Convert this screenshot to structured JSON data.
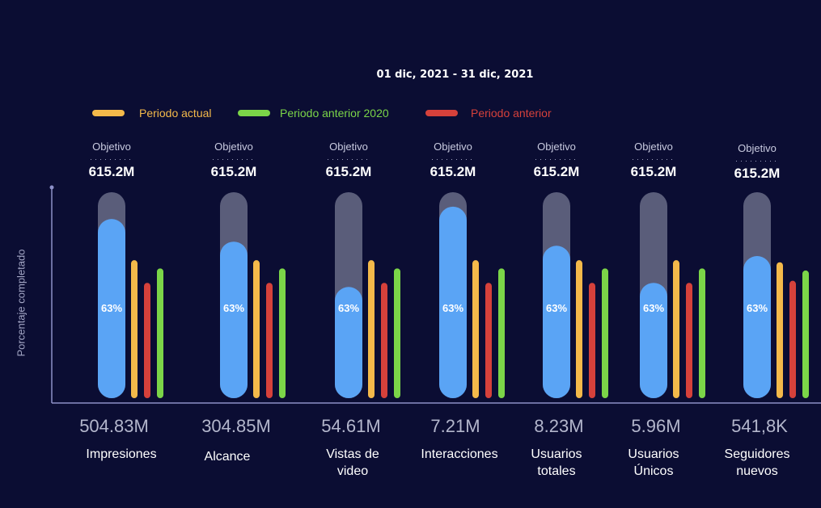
{
  "date_range": "01 dic, 2021 - 31 dic, 2021",
  "colors": {
    "background": "#0b0d33",
    "axis": "#8d90c8",
    "track": "#5a5d7a",
    "progress": "#5aa4f5",
    "current": "#f4b94a",
    "previous": "#d6413b",
    "previous_2020": "#7bd548"
  },
  "chart_data": {
    "type": "bar",
    "ylabel": "Porcentaje completado",
    "legend_position": "top-left",
    "legend": [
      {
        "key": "current",
        "label": "Periodo actual",
        "color": "#f4b94a"
      },
      {
        "key": "previous_2020",
        "label": "Periodo anterior 2020",
        "color": "#7bd548"
      },
      {
        "key": "previous",
        "label": "Periodo anterior",
        "color": "#d6413b"
      }
    ],
    "target_label": "Objetivo",
    "target_value": "615.2M",
    "categories": [
      {
        "name": "Impresiones",
        "value": "504.83M",
        "percent_label": "63%",
        "progress": 0.87,
        "current": 0.67,
        "previous": 0.56,
        "previous_2020": 0.63
      },
      {
        "name": "Alcance",
        "value": "304.85M",
        "percent_label": "63%",
        "progress": 0.76,
        "current": 0.67,
        "previous": 0.56,
        "previous_2020": 0.63
      },
      {
        "name": "Vistas de video",
        "value": "54.61M",
        "percent_label": "63%",
        "progress": 0.54,
        "current": 0.67,
        "previous": 0.56,
        "previous_2020": 0.63
      },
      {
        "name": "Interacciones",
        "value": "7.21M",
        "percent_label": "63%",
        "progress": 0.93,
        "current": 0.67,
        "previous": 0.56,
        "previous_2020": 0.63
      },
      {
        "name": "Usuarios totales",
        "value": "8.23M",
        "percent_label": "63%",
        "progress": 0.74,
        "current": 0.67,
        "previous": 0.56,
        "previous_2020": 0.63
      },
      {
        "name": "Usuarios Únicos",
        "value": "5.96M",
        "percent_label": "63%",
        "progress": 0.56,
        "current": 0.67,
        "previous": 0.56,
        "previous_2020": 0.63
      },
      {
        "name": "Seguidores nuevos",
        "value": "541,8K",
        "percent_label": "63%",
        "progress": 0.69,
        "current": 0.66,
        "previous": 0.57,
        "previous_2020": 0.62
      }
    ]
  }
}
